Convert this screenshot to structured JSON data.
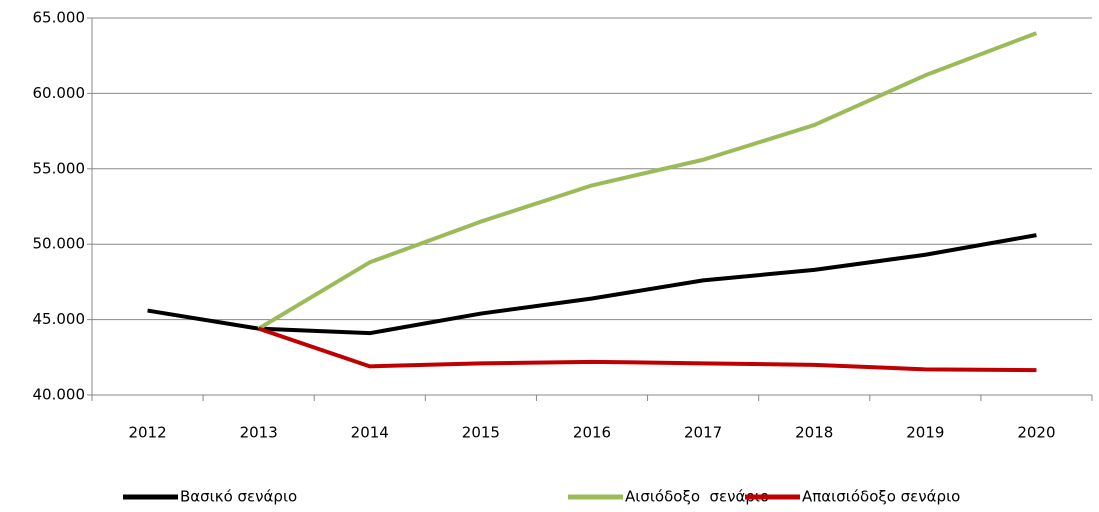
{
  "chart_data": {
    "type": "line",
    "categories": [
      "2012",
      "2013",
      "2014",
      "2015",
      "2016",
      "2017",
      "2018",
      "2019",
      "2020"
    ],
    "series": [
      {
        "name": "Βασικό σενάριο",
        "color": "#000000",
        "values": [
          45600,
          44400,
          44100,
          45400,
          46400,
          47600,
          48300,
          49300,
          50600
        ]
      },
      {
        "name": "Αισιόδοξο  σενάριο",
        "color": "#9bbb59",
        "values": [
          null,
          44400,
          48800,
          51500,
          53900,
          55600,
          57900,
          61200,
          64000
        ]
      },
      {
        "name": "Απαισιόδοξο σενάριο",
        "color": "#c00000",
        "values": [
          null,
          44400,
          41900,
          42100,
          42200,
          42100,
          42000,
          41700,
          41650
        ]
      }
    ],
    "ylim": [
      40000,
      65000
    ],
    "yticks": [
      {
        "value": 40000,
        "label": "40.000"
      },
      {
        "value": 45000,
        "label": "45.000"
      },
      {
        "value": 50000,
        "label": "50.000"
      },
      {
        "value": 55000,
        "label": "55.000"
      },
      {
        "value": 60000,
        "label": "60.000"
      },
      {
        "value": 65000,
        "label": "65.000"
      }
    ],
    "grid": true,
    "legend": "bottom"
  }
}
